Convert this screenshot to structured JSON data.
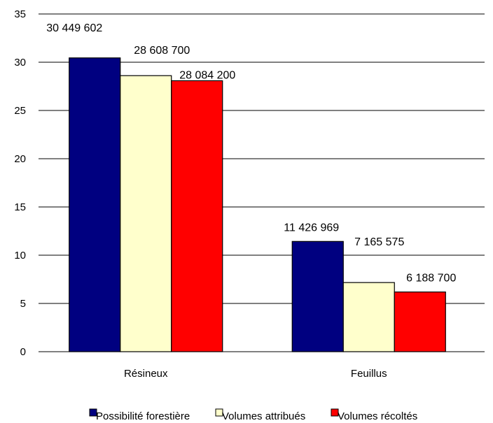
{
  "chart_data": {
    "type": "bar",
    "title": "",
    "xlabel": "",
    "ylabel": "",
    "categories": [
      "Résineux",
      "Feuillus"
    ],
    "series": [
      {
        "name": "Possibilité forestière",
        "color": "#000080",
        "values": [
          30.449602,
          11.426969
        ],
        "labels": [
          "30 449 602",
          "11 426 969"
        ]
      },
      {
        "name": "Volumes attribués",
        "color": "#ffffcc",
        "values": [
          28.6087,
          7.165575
        ],
        "labels": [
          "28 608 700",
          "7 165 575"
        ]
      },
      {
        "name": "Volumes récoltés",
        "color": "#ff0000",
        "values": [
          28.0842,
          6.1887
        ],
        "labels": [
          "28 084 200",
          "6 188 700"
        ]
      }
    ],
    "ylim": [
      0,
      35
    ],
    "yticks": [
      0,
      5,
      10,
      15,
      20,
      25,
      30,
      35
    ],
    "grid": true,
    "legend": "bottom"
  }
}
